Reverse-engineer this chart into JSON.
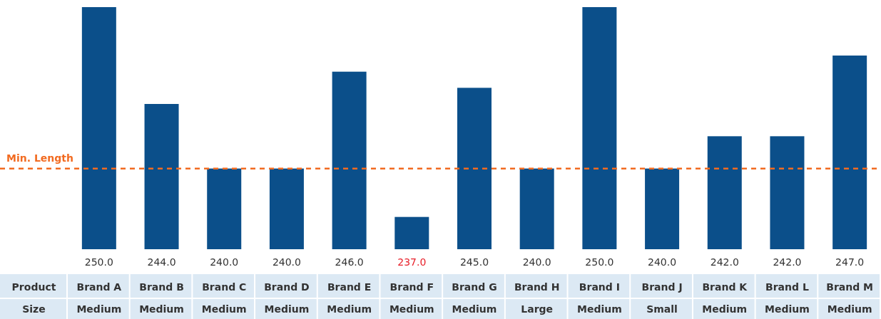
{
  "chart_data": {
    "type": "bar",
    "categories": [
      "Brand A",
      "Brand B",
      "Brand C",
      "Brand D",
      "Brand E",
      "Brand F",
      "Brand G",
      "Brand H",
      "Brand I",
      "Brand J",
      "Brand K",
      "Brand L",
      "Brand M"
    ],
    "values": [
      250.0,
      244.0,
      240.0,
      240.0,
      246.0,
      237.0,
      245.0,
      240.0,
      250.0,
      240.0,
      242.0,
      242.0,
      247.0
    ],
    "value_labels": [
      "250.0",
      "244.0",
      "240.0",
      "240.0",
      "246.0",
      "237.0",
      "245.0",
      "240.0",
      "250.0",
      "240.0",
      "242.0",
      "242.0",
      "247.0"
    ],
    "ylim": [
      235,
      250
    ],
    "tick_labels": "x",
    "color": "#0b4f8a",
    "xlabel": "Product",
    "ref_lines": [
      {
        "axis": "y",
        "value": 240,
        "label": "Min. Length",
        "color": "#f26b21",
        "line_style": "dashed"
      }
    ],
    "annotations": [
      "Size",
      "Medium",
      "Medium",
      "Medium",
      "Medium",
      "Medium",
      "Medium",
      "Medium",
      "Large",
      "Medium",
      "Small",
      "Medium",
      "Medium",
      "Medium"
    ]
  }
}
